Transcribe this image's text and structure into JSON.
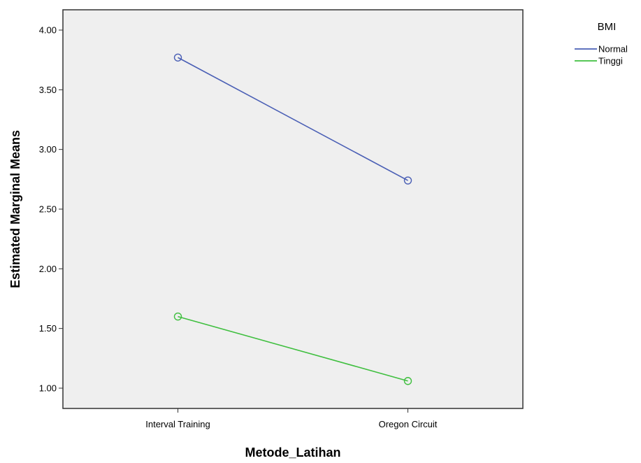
{
  "chart_data": {
    "type": "line",
    "xlabel": "Metode_Latihan",
    "ylabel": "Estimated Marginal Means",
    "categories": [
      "Interval Training",
      "Oregon Circuit"
    ],
    "ylim": [
      0.83,
      4.17
    ],
    "yticks": [
      1.0,
      1.5,
      2.0,
      2.5,
      3.0,
      3.5,
      4.0
    ],
    "ytick_labels": [
      "1.00",
      "1.50",
      "2.00",
      "2.50",
      "3.00",
      "3.50",
      "4.00"
    ],
    "grid": false,
    "legend_title": "BMI",
    "legend_position": "right",
    "series": [
      {
        "name": "Normal",
        "values": [
          3.77,
          2.74
        ],
        "color": "#4a5fb5"
      },
      {
        "name": "Tinggi",
        "values": [
          1.6,
          1.06
        ],
        "color": "#3fbf3f"
      }
    ],
    "plot_background": "#efefef",
    "marker": "open-circle"
  }
}
